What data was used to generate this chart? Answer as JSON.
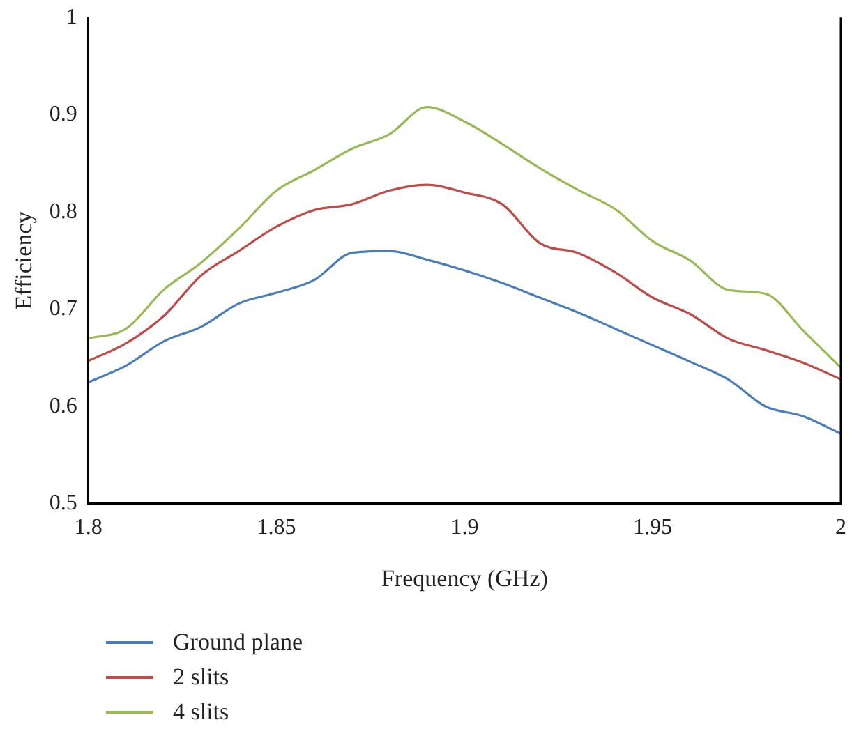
{
  "chart_data": {
    "type": "line",
    "xlabel": "Frequency (GHz)",
    "ylabel": "Efficiency",
    "x": [
      1.8,
      1.81,
      1.82,
      1.83,
      1.84,
      1.85,
      1.86,
      1.87,
      1.88,
      1.89,
      1.9,
      1.91,
      1.92,
      1.93,
      1.94,
      1.95,
      1.96,
      1.97,
      1.98,
      1.99,
      2.0
    ],
    "series": [
      {
        "name": "Ground plane",
        "color": "#4a7ebb",
        "values": [
          0.625,
          0.642,
          0.667,
          0.682,
          0.706,
          0.717,
          0.73,
          0.758,
          0.76,
          0.751,
          0.74,
          0.727,
          0.712,
          0.697,
          0.68,
          0.663,
          0.646,
          0.628,
          0.6,
          0.59,
          0.572
        ]
      },
      {
        "name": "2 slits",
        "color": "#be4b48",
        "values": [
          0.647,
          0.665,
          0.693,
          0.735,
          0.76,
          0.785,
          0.802,
          0.808,
          0.822,
          0.828,
          0.82,
          0.808,
          0.768,
          0.758,
          0.738,
          0.712,
          0.695,
          0.67,
          0.658,
          0.645,
          0.628
        ]
      },
      {
        "name": "4 slits",
        "color": "#98b954",
        "values": [
          0.67,
          0.68,
          0.72,
          0.748,
          0.783,
          0.822,
          0.843,
          0.865,
          0.88,
          0.908,
          0.893,
          0.87,
          0.845,
          0.823,
          0.803,
          0.77,
          0.75,
          0.72,
          0.716,
          0.678,
          0.64
        ]
      }
    ],
    "xlim": [
      1.8,
      2
    ],
    "xticks": [
      1.8,
      1.85,
      1.9,
      1.95,
      2
    ],
    "ylim": [
      0.5,
      1
    ],
    "yticks": [
      0.5,
      0.6,
      0.7,
      0.8,
      0.9,
      1
    ],
    "grid": false,
    "legend": "bottom left",
    "marker": "none",
    "line_style": "solid"
  }
}
